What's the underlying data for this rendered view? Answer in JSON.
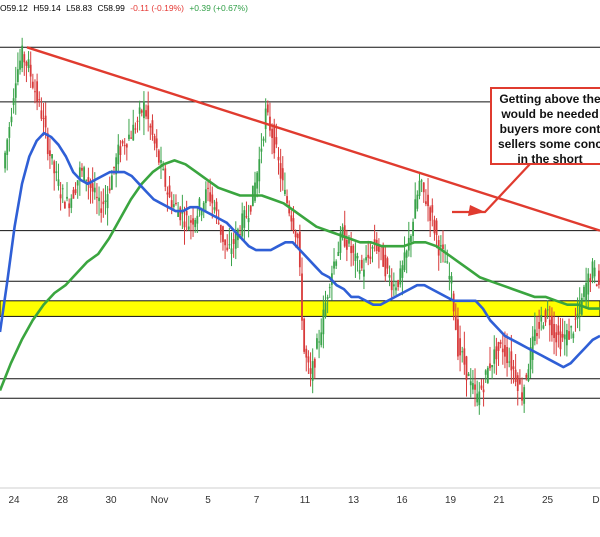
{
  "ohlc": {
    "open": "O59.12",
    "high": "H59.14",
    "low": "L58.83",
    "close": "C58.99",
    "change": "-0.11 (-0.19%)",
    "change2": "+0.39 (+0.67%)"
  },
  "annotation": {
    "lines": [
      "Getting above the",
      "would be needed",
      "buyers more cont",
      "sellers some conc",
      "in the short"
    ]
  },
  "colors": {
    "candle_up": "#3aa34a",
    "candle_down": "#d83b3b",
    "ma_blue": "#2f5fd6",
    "ma_green": "#3aa53f",
    "trendline": "#e03b2f",
    "support_zone": "#ffff00"
  },
  "chart_data": {
    "type": "line",
    "xlabels": [
      "24",
      "28",
      "30",
      "Nov",
      "5",
      "7",
      "11",
      "13",
      "16",
      "19",
      "21",
      "25",
      "D"
    ],
    "xlabel": "",
    "ylabel": "",
    "grid": false,
    "series": [
      {
        "role": "price",
        "values": [
          63.2,
          64.3,
          65.6,
          66.1,
          65.8,
          65.2,
          64.6,
          63.8,
          63.1,
          62.6,
          62.3,
          62.6,
          63.1,
          63.0,
          62.6,
          62.2,
          62.4,
          63.0,
          63.6,
          63.9,
          64.1,
          64.4,
          64.8,
          64.2,
          63.6,
          63.0,
          62.4,
          62.2,
          62.0,
          61.8,
          62.0,
          62.3,
          62.6,
          62.2,
          61.6,
          61.0,
          61.3,
          61.7,
          62.0,
          62.5,
          63.4,
          64.6,
          64.1,
          63.3,
          62.5,
          62.0,
          61.4,
          58.5,
          57.8,
          58.6,
          59.4,
          60.4,
          61.0,
          61.5,
          61.2,
          60.8,
          60.6,
          60.9,
          61.3,
          61.0,
          60.5,
          60.2,
          60.4,
          61.0,
          61.9,
          62.8,
          62.4,
          61.9,
          61.2,
          60.8,
          60.2,
          58.6,
          58.2,
          57.6,
          57.3,
          57.7,
          58.2,
          58.5,
          58.6,
          58.3,
          57.9,
          57.4,
          58.2,
          58.9,
          59.3,
          59.5,
          59.0,
          58.8,
          58.9,
          59.1,
          59.6,
          60.2,
          60.6,
          60.2
        ]
      },
      {
        "role": "moving-average-blue",
        "values": [
          59.0,
          60.3,
          61.7,
          62.8,
          63.5,
          63.9,
          64.1,
          64.0,
          63.8,
          63.5,
          63.1,
          62.9,
          62.8,
          62.9,
          63.0,
          63.1,
          63.1,
          63.1,
          63.0,
          62.8,
          62.6,
          62.4,
          62.3,
          62.2,
          62.1,
          62.1,
          62.2,
          62.2,
          62.1,
          62.0,
          61.9,
          61.8,
          61.6,
          61.4,
          61.2,
          61.1,
          61.1,
          61.1,
          61.2,
          61.3,
          61.3,
          61.1,
          60.9,
          60.7,
          60.5,
          60.4,
          60.2,
          60.1,
          59.9,
          59.9,
          59.8,
          59.7,
          59.7,
          59.8,
          59.9,
          60.0,
          60.1,
          60.2,
          60.2,
          60.1,
          60.0,
          59.9,
          59.8,
          59.8,
          59.8,
          59.8,
          59.6,
          59.3,
          59.1,
          58.9,
          58.8,
          58.7,
          58.6,
          58.5,
          58.4,
          58.3,
          58.2,
          58.1,
          58.2,
          58.4,
          58.6,
          58.8,
          58.9
        ]
      },
      {
        "role": "moving-average-green",
        "values": [
          57.5,
          58.2,
          58.8,
          59.3,
          59.7,
          60.0,
          60.2,
          60.5,
          60.8,
          61.0,
          61.4,
          61.9,
          62.4,
          62.8,
          63.1,
          63.3,
          63.4,
          63.3,
          63.1,
          62.9,
          62.7,
          62.6,
          62.5,
          62.5,
          62.5,
          62.4,
          62.3,
          62.1,
          61.9,
          61.7,
          61.6,
          61.5,
          61.4,
          61.3,
          61.3,
          61.2,
          61.2,
          61.2,
          61.3,
          61.3,
          61.2,
          61.0,
          60.8,
          60.6,
          60.4,
          60.3,
          60.2,
          60.1,
          60.0,
          59.9,
          59.9,
          59.8,
          59.7,
          59.7,
          59.6,
          59.6
        ]
      },
      {
        "role": "trendline",
        "values": [
          66.3,
          61.6
        ]
      }
    ],
    "horizontal_levels": [
      66.3,
      64.9,
      61.6,
      60.3,
      57.8,
      57.3
    ],
    "support_zone": [
      59.4,
      59.8
    ],
    "ylim": [
      55.0,
      67.0
    ]
  }
}
